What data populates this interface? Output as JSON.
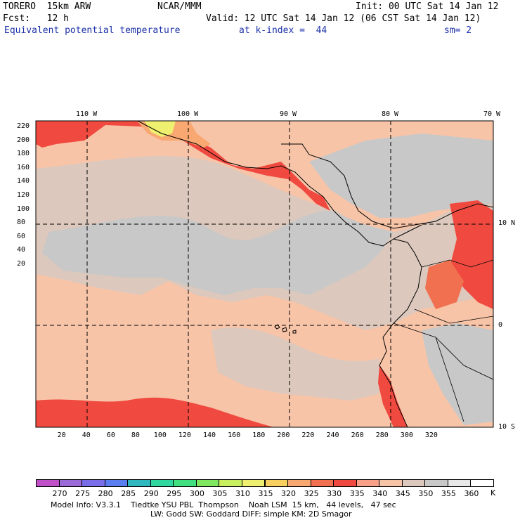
{
  "header": {
    "model": "TORERO  15km ARW",
    "center": "NCAR/MMM",
    "init": "Init: 00 UTC Sat 14 Jan 12",
    "fcst": "Fcst:   12 h",
    "valid": "Valid: 12 UTC Sat 14 Jan 12 (06 CST Sat 14 Jan 12)",
    "field": "Equivalent potential temperature",
    "level": "at k-index =  44",
    "smoothing": "sm= 2"
  },
  "map": {
    "top_lon_labels": [
      "110 W",
      "100 W",
      "90 W",
      "80 W",
      "70 W"
    ],
    "right_lat_labels": [
      "10 N",
      "0",
      "10 S"
    ],
    "left_y_ticks": [
      "220",
      "200",
      "180",
      "160",
      "140",
      "120",
      "100",
      "80",
      "60",
      "40",
      "20"
    ],
    "bottom_x_ticks": [
      "20",
      "40",
      "60",
      "80",
      "100",
      "120",
      "140",
      "160",
      "180",
      "200",
      "220",
      "240",
      "260",
      "280",
      "300",
      "320"
    ]
  },
  "colorbar": {
    "unit": "K",
    "labels": [
      "270",
      "275",
      "280",
      "285",
      "290",
      "295",
      "300",
      "305",
      "310",
      "315",
      "320",
      "325",
      "330",
      "335",
      "340",
      "345",
      "350",
      "355",
      "360"
    ],
    "colors": [
      "#c050c8",
      "#9a6ad8",
      "#7a6ee8",
      "#5a7ef0",
      "#30b8c0",
      "#30d8a0",
      "#40e080",
      "#80e860",
      "#c8f060",
      "#f0f070",
      "#f8d060",
      "#f8a870",
      "#f07050",
      "#f04a40",
      "#f8a088",
      "#f8c4a8",
      "#dcc8bc",
      "#c8c8c8",
      "#e8e8e8",
      "#ffffff"
    ]
  },
  "footer": {
    "line1": "Model Info: V3.3.1    Tiedtke YSU PBL  Thompson    Noah LSM  15 km,   44 levels,   47 sec",
    "line2": "LW: Godd SW: Goddard DIFF: simple KM: 2D Smagor"
  }
}
